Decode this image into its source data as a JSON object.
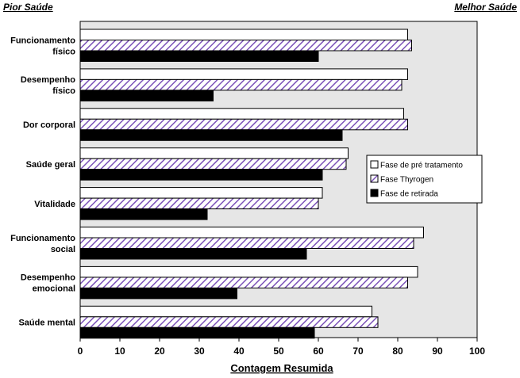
{
  "notes": {
    "left": "Pior Saúde",
    "right": "Melhor Saúde"
  },
  "chart_data": {
    "type": "bar",
    "orientation": "horizontal",
    "title": "",
    "xlabel": "Contagem Resumida",
    "ylabel": "",
    "xlim": [
      0,
      100
    ],
    "x_ticks": [
      0,
      10,
      20,
      30,
      40,
      50,
      60,
      70,
      80,
      90,
      100
    ],
    "grid": false,
    "legend_position": "right",
    "categories": [
      [
        "Funcionamento",
        "físico"
      ],
      [
        "Desempenho",
        "físico"
      ],
      [
        "Dor corporal"
      ],
      [
        "Saúde geral"
      ],
      [
        "Vitalidade"
      ],
      [
        "Funcionamento",
        "social"
      ],
      [
        "Desempenho",
        "emocional"
      ],
      [
        "Saúde mental"
      ]
    ],
    "series": [
      {
        "name": "Fase de pré tratamento",
        "style": "white",
        "values": [
          82.5,
          82.5,
          81.5,
          67.5,
          61,
          86.5,
          85,
          73.5
        ]
      },
      {
        "name": "Fase Thyrogen",
        "style": "hatched",
        "values": [
          83.5,
          81,
          82.5,
          67,
          60,
          84,
          82.5,
          75
        ]
      },
      {
        "name": "Fase de retirada",
        "style": "black",
        "values": [
          60,
          33.5,
          66,
          61,
          32,
          57,
          39.5,
          59
        ]
      }
    ]
  }
}
